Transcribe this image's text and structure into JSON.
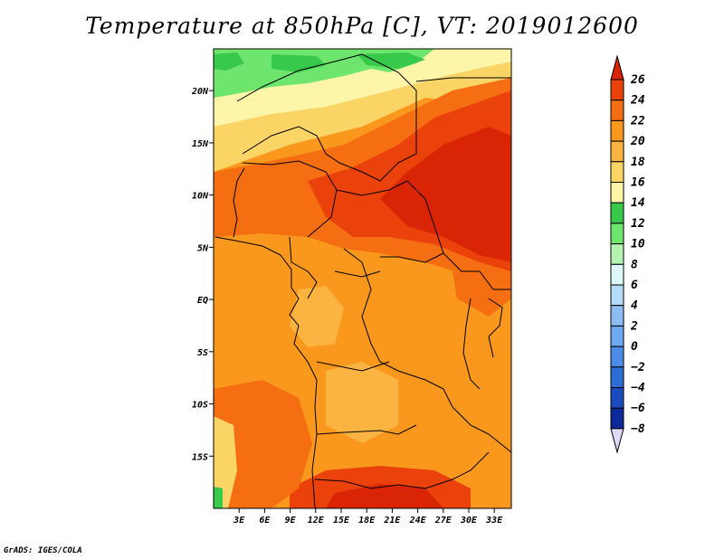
{
  "title": "Temperature at 850hPa [C], VT: 2019012600",
  "credit": "GrADS: IGES/COLA",
  "map": {
    "lon_range": [
      0,
      35
    ],
    "lat_range": [
      -20,
      24
    ],
    "lat_ticks": [
      {
        "value": 20,
        "label": "20N"
      },
      {
        "value": 15,
        "label": "15N"
      },
      {
        "value": 10,
        "label": "10N"
      },
      {
        "value": 5,
        "label": "5N"
      },
      {
        "value": 0,
        "label": "EQ"
      },
      {
        "value": -5,
        "label": "5S"
      },
      {
        "value": -10,
        "label": "10S"
      },
      {
        "value": -15,
        "label": "15S"
      }
    ],
    "lon_ticks": [
      {
        "value": 3,
        "label": "3E"
      },
      {
        "value": 6,
        "label": "6E"
      },
      {
        "value": 9,
        "label": "9E"
      },
      {
        "value": 12,
        "label": "12E"
      },
      {
        "value": 15,
        "label": "15E"
      },
      {
        "value": 18,
        "label": "18E"
      },
      {
        "value": 21,
        "label": "21E"
      },
      {
        "value": 24,
        "label": "24E"
      },
      {
        "value": 27,
        "label": "27E"
      },
      {
        "value": 30,
        "label": "30E"
      },
      {
        "value": 33,
        "label": "33E"
      }
    ]
  },
  "colorbar": {
    "levels": [
      "26",
      "24",
      "22",
      "20",
      "18",
      "16",
      "14",
      "12",
      "10",
      "8",
      "6",
      "4",
      "2",
      "0",
      "−2",
      "−4",
      "−6",
      "−8"
    ],
    "colors": [
      "#d92406",
      "#ea420a",
      "#f56e12",
      "#f9981c",
      "#fbb441",
      "#fbd466",
      "#fdf5a8",
      "#38c84a",
      "#6ee66e",
      "#b4f4b0",
      "#dcf8f8",
      "#b4dcf8",
      "#8cbef4",
      "#6eaaf0",
      "#4c8ce6",
      "#2c6ed6",
      "#1a4cc0",
      "#0c2a9a",
      "#060a6e"
    ],
    "top_color": "#d92406",
    "bottom_color": "#dcdcf8"
  }
}
